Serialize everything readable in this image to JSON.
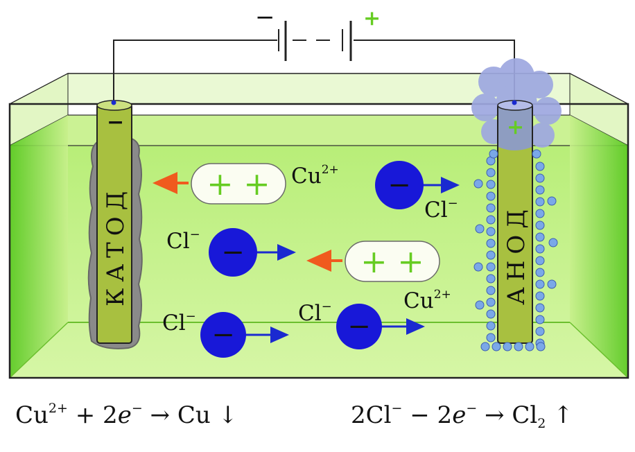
{
  "battery": {
    "minus_sign": "−",
    "plus_sign": "+"
  },
  "electrodes": {
    "cathode": {
      "label": "КАТОД",
      "sign": "−"
    },
    "anode": {
      "label": "АНОД",
      "sign": "+"
    }
  },
  "ions": {
    "cu": {
      "base": "Cu",
      "charge": "2+",
      "signs": "+ +"
    },
    "cl": {
      "base": "Cl",
      "charge": "−",
      "sign": "−"
    }
  },
  "equations": {
    "cathode": {
      "cu": "Cu",
      "charge": "2+",
      "plus": " + 2",
      "e": "e",
      "e_charge": "−",
      "rest": " → Cu ↓"
    },
    "anode": {
      "lead": "2Cl",
      "cl_charge": "−",
      "minus": " − 2",
      "e": "e",
      "e_charge": "−",
      "arrow": " → Cl",
      "sub": "2",
      "up": " ↑"
    }
  },
  "colors": {
    "solution": "#c8f08c",
    "tank_edge": "#9ddc4a",
    "electrode": "#a8c040",
    "copper_deposit": "#8a8a8a",
    "anion": "#1818d8",
    "plus_sign": "#66cc22",
    "bubble": "#7aa8e8",
    "chlorine_gas": "#9ea8e0",
    "arrow_to_cathode": "#f05a1e",
    "arrow_to_anode": "#1a2ad0"
  }
}
